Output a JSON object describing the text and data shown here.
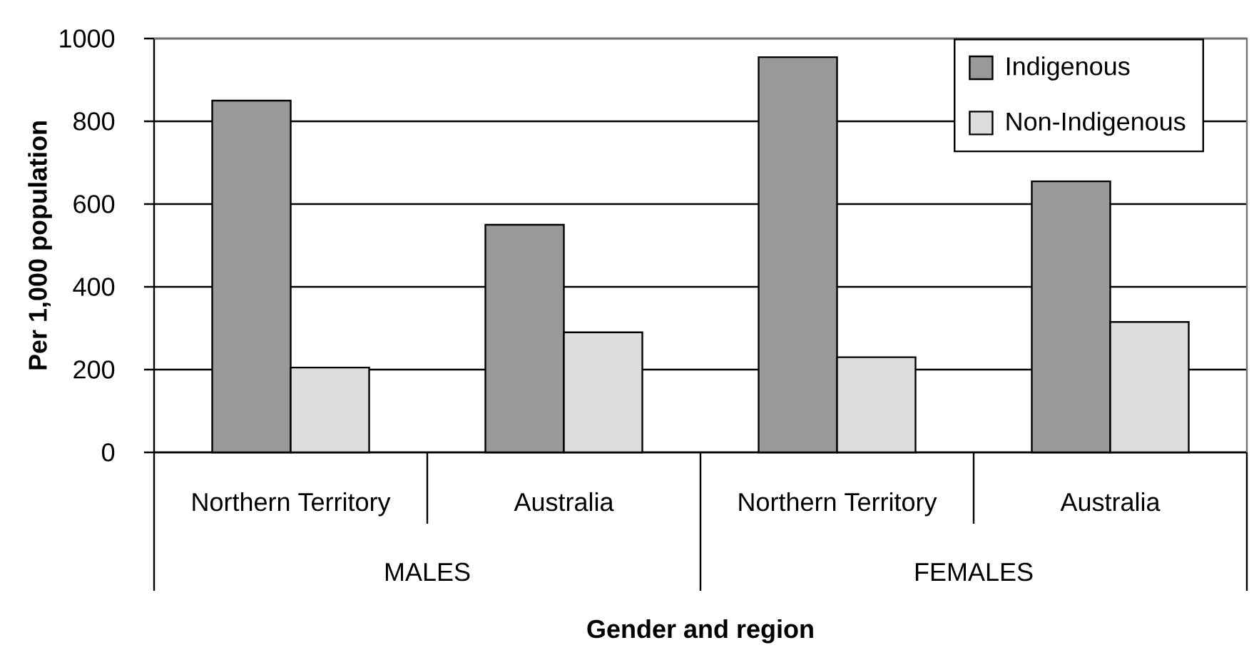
{
  "chart_data": {
    "type": "bar",
    "xlabel": "Gender and region",
    "ylabel": "Per 1,000 population",
    "categories": [
      "Northern Territory",
      "Australia",
      "Northern Territory",
      "Australia"
    ],
    "series": [
      {
        "name": "Indigenous",
        "color": "#999999",
        "values": [
          850,
          550,
          955,
          655
        ]
      },
      {
        "name": "Non-Indigenous",
        "color": "#dddddd",
        "values": [
          205,
          290,
          230,
          315
        ]
      }
    ],
    "ylim": [
      0,
      1000
    ],
    "yticks": [
      0,
      200,
      400,
      600,
      800,
      1000
    ],
    "grid": "y",
    "legend": "top right",
    "annotations": [
      "MALES",
      "FEMALES"
    ]
  }
}
